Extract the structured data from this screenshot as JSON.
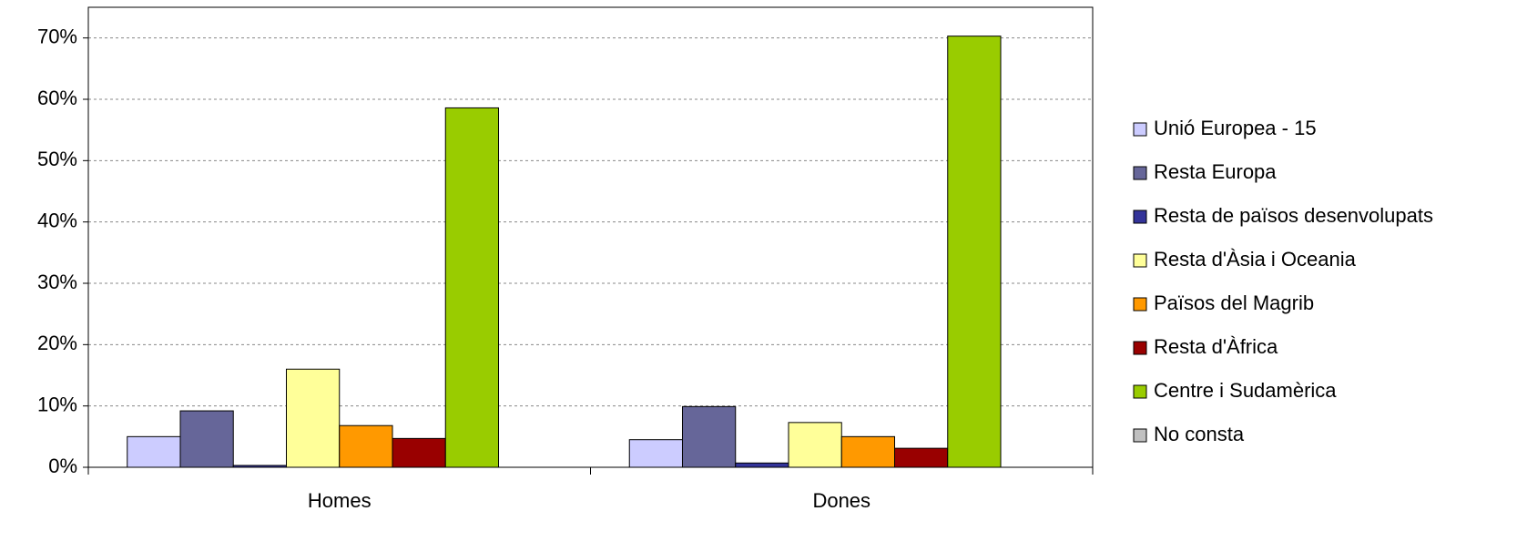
{
  "chart_data": {
    "type": "bar",
    "categories": [
      "Homes",
      "Dones"
    ],
    "series": [
      {
        "name": "Unió Europea - 15",
        "color": "#ccccff",
        "values": [
          5.0,
          4.5
        ]
      },
      {
        "name": "Resta Europa",
        "color": "#666699",
        "values": [
          9.2,
          9.9
        ]
      },
      {
        "name": "Resta de països desenvolupats",
        "color": "#333399",
        "values": [
          0.3,
          0.7
        ]
      },
      {
        "name": "Resta d'Àsia i Oceania",
        "color": "#ffff99",
        "values": [
          16.0,
          7.3
        ]
      },
      {
        "name": "Països del Magrib",
        "color": "#ff9900",
        "values": [
          6.8,
          5.0
        ]
      },
      {
        "name": "Resta d'Àfrica",
        "color": "#990000",
        "values": [
          4.7,
          3.1
        ]
      },
      {
        "name": "Centre i Sudamèrica",
        "color": "#99cc00",
        "values": [
          58.6,
          70.3
        ]
      },
      {
        "name": "No consta",
        "color": "#c0c0c0",
        "values": [
          0,
          0
        ]
      }
    ],
    "ylim": [
      0,
      75
    ],
    "yticks": [
      {
        "value": 0,
        "label": "0%"
      },
      {
        "value": 10,
        "label": "10%"
      },
      {
        "value": 20,
        "label": "20%"
      },
      {
        "value": 30,
        "label": "30%"
      },
      {
        "value": 40,
        "label": "40%"
      },
      {
        "value": 50,
        "label": "50%"
      },
      {
        "value": 60,
        "label": "60%"
      },
      {
        "value": 70,
        "label": "70%"
      }
    ],
    "grid": true,
    "legend": "right"
  }
}
